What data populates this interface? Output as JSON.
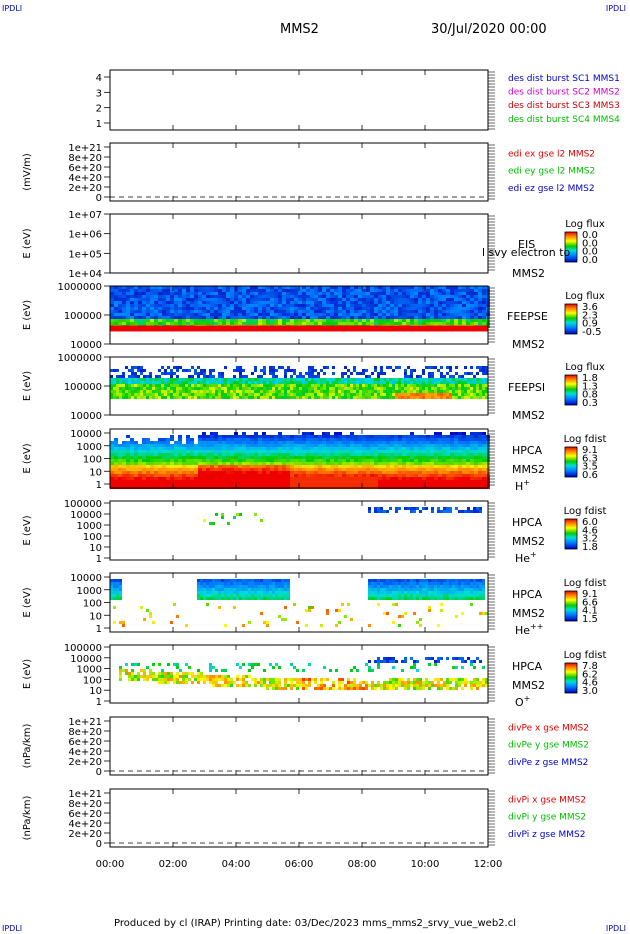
{
  "corners": {
    "tl": "IPDLI",
    "tr": "IPDLI",
    "bl": "IPDLI",
    "br": "IPDLI"
  },
  "header": {
    "spacecraft": "MMS2",
    "datetime": "30/Jul/2020 00:00"
  },
  "footer": "Produced by cl (IRAP)   Printing date: 03/Dec/2023   mms_mms2_srvy_vue_web2.cl",
  "chart_data": [
    {
      "type": "line",
      "id": "burst",
      "yticks": [
        "4",
        "3",
        "2",
        "1"
      ],
      "ylim": [
        0.5,
        4.5
      ],
      "legend": [
        {
          "label": "des dist burst SC1 MMS1",
          "color": "#0000cc"
        },
        {
          "label": "des dist burst SC2 MMS2",
          "color": "#cc00cc"
        },
        {
          "label": "des dist burst SC3 MMS3",
          "color": "#cc0000"
        },
        {
          "label": "des dist burst SC4 MMS4",
          "color": "#00bb00"
        }
      ],
      "series": []
    },
    {
      "type": "line",
      "id": "edi",
      "ylabel": "(mV/m)",
      "yticks": [
        "1e+21",
        "8e+20",
        "6e+20",
        "4e+20",
        "2e+20",
        "0"
      ],
      "ylim": [
        0,
        1e+21
      ],
      "legend": [
        {
          "label": "edi ex gse l2 MMS2",
          "color": "#dd0000"
        },
        {
          "label": "edi ey gse l2 MMS2",
          "color": "#00bb00"
        },
        {
          "label": "edi ez gse l2 MMS2",
          "color": "#0000cc"
        }
      ]
    },
    {
      "type": "heatmap",
      "id": "eis",
      "ylabel": "E (eV)",
      "yticks": [
        "1e+07",
        "1e+06",
        "1e+05",
        "1e+04"
      ],
      "title": "EIS",
      "sc": "MMS2",
      "overlay": "l svy electron to",
      "cbar_title": "Log flux",
      "cbar_ticks": [
        "0.0",
        "0.0",
        "0.0",
        "0.0"
      ]
    },
    {
      "type": "heatmap",
      "id": "feepse",
      "ylabel": "E (eV)",
      "yticks": [
        "1000000",
        "100000",
        "10000"
      ],
      "title": "FEEPSE",
      "sc": "MMS2",
      "cbar_title": "Log flux",
      "cbar_ticks": [
        "3.6",
        "2.3",
        "0.9",
        "-0.5"
      ]
    },
    {
      "type": "heatmap",
      "id": "feepsi",
      "ylabel": "E (eV)",
      "yticks": [
        "1000000",
        "100000",
        "10000"
      ],
      "title": "FEEPSI",
      "sc": "MMS2",
      "cbar_title": "Log flux",
      "cbar_ticks": [
        "1.8",
        "1.3",
        "0.8",
        "0.3"
      ]
    },
    {
      "type": "heatmap",
      "id": "hpca_h",
      "ylabel": "E (eV)",
      "yticks": [
        "10000",
        "1000",
        "100",
        "10",
        "1"
      ],
      "title": "HPCA",
      "sc": "MMS2",
      "species": "H",
      "charge": "+",
      "cbar_title": "Log fdist",
      "cbar_ticks": [
        "9.1",
        "6.3",
        "3.5",
        "0.6"
      ]
    },
    {
      "type": "heatmap",
      "id": "hpca_he",
      "ylabel": "E (eV)",
      "yticks": [
        "100000",
        "10000",
        "1000",
        "100",
        "10",
        "1"
      ],
      "title": "HPCA",
      "sc": "MMS2",
      "species": "He",
      "charge": "+",
      "cbar_title": "Log fdist",
      "cbar_ticks": [
        "6.0",
        "4.6",
        "3.2",
        "1.8"
      ]
    },
    {
      "type": "heatmap",
      "id": "hpca_he2",
      "ylabel": "E (eV)",
      "yticks": [
        "10000",
        "1000",
        "100",
        "10",
        "1"
      ],
      "title": "HPCA",
      "sc": "MMS2",
      "species": "He",
      "charge": "++",
      "cbar_title": "Log fdist",
      "cbar_ticks": [
        "9.1",
        "6.6",
        "4.1",
        "1.5"
      ]
    },
    {
      "type": "heatmap",
      "id": "hpca_o",
      "ylabel": "E (eV)",
      "yticks": [
        "100000",
        "10000",
        "1000",
        "100",
        "10",
        "1"
      ],
      "title": "HPCA",
      "sc": "MMS2",
      "species": "O",
      "charge": "+",
      "cbar_title": "Log fdist",
      "cbar_ticks": [
        "7.8",
        "6.2",
        "4.6",
        "3.0"
      ]
    },
    {
      "type": "line",
      "id": "divpe",
      "ylabel": "(nPa/km)",
      "yticks": [
        "1e+21",
        "8e+20",
        "6e+20",
        "4e+20",
        "2e+20",
        "0"
      ],
      "ylim": [
        0,
        1e+21
      ],
      "legend": [
        {
          "label": "divPe x gse MMS2",
          "color": "#dd0000"
        },
        {
          "label": "divPe y gse MMS2",
          "color": "#00bb00"
        },
        {
          "label": "divPe z gse MMS2",
          "color": "#0000cc"
        }
      ]
    },
    {
      "type": "line",
      "id": "divpi",
      "ylabel": "(nPa/km)",
      "yticks": [
        "1e+21",
        "8e+20",
        "6e+20",
        "4e+20",
        "2e+20",
        "0"
      ],
      "ylim": [
        0,
        1e+21
      ],
      "legend": [
        {
          "label": "divPi x gse MMS2",
          "color": "#dd0000"
        },
        {
          "label": "divPi y gse MMS2",
          "color": "#00bb00"
        },
        {
          "label": "divPi z gse MMS2",
          "color": "#0000cc"
        }
      ]
    }
  ],
  "xticks": [
    "00:00",
    "02:00",
    "04:00",
    "06:00",
    "08:00",
    "10:00",
    "12:00"
  ]
}
